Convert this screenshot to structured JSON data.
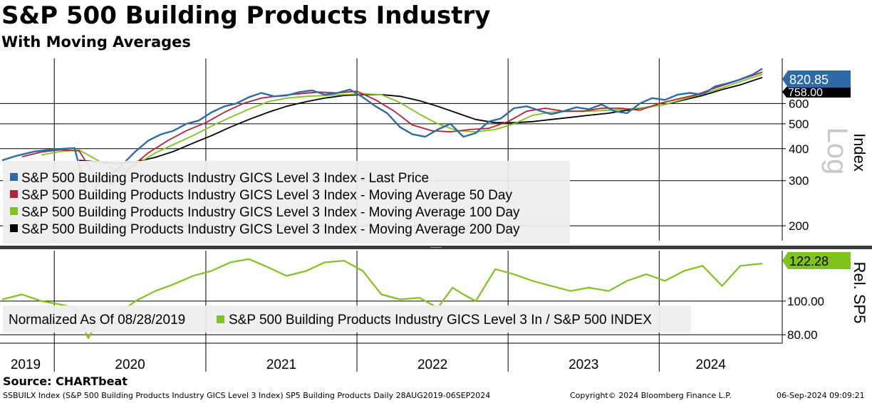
{
  "header": {
    "title": "S&P 500 Building Products Industry",
    "subtitle": "With Moving Averages"
  },
  "footer": {
    "source": "Source: CHARTbeat",
    "ticker_info": "SSBUILX Index (S&P 500 Building Products Industry GICS Level 3 Index) SP5 Building Products  Daily 28AUG2019-06SEP2024",
    "copyright": "Copyright© 2024 Bloomberg Finance L.P.",
    "timestamp": "06-Sep-2024 09:09:21"
  },
  "colors": {
    "last_price": "#2f6aa8",
    "ma50": "#b2233a",
    "ma100": "#7fc31c",
    "ma200": "#000000",
    "relative": "#7fc31c"
  },
  "chart_data": [
    {
      "type": "line",
      "panel": "upper",
      "y_scale": "log",
      "y_axis_title": "Index",
      "scale_watermark": "Log",
      "ylim": [
        175,
        900
      ],
      "y_ticks": [
        200,
        300,
        400,
        500,
        600
      ],
      "y_tick_labels": [
        "200",
        "300",
        "400",
        "500",
        "600"
      ],
      "x_ticks": [
        "2019",
        "2020",
        "2021",
        "2022",
        "2023",
        "2024"
      ],
      "last_value_labels": [
        {
          "series": "Last Price",
          "value": "820.85"
        },
        {
          "series": "Moving Average 200 Day",
          "value": "758.00"
        }
      ],
      "series": [
        {
          "name": "S&P 500 Building Products Industry GICS Level 3 Index - Last Price",
          "color": "#2f6aa8",
          "x": [
            "2019-08-28",
            "2019-10-01",
            "2019-11-15",
            "2020-01-02",
            "2020-02-19",
            "2020-03-23",
            "2020-04-20",
            "2020-05-15",
            "2020-06-08",
            "2020-07-15",
            "2020-08-15",
            "2020-09-15",
            "2020-10-15",
            "2020-11-15",
            "2020-12-15",
            "2021-01-15",
            "2021-02-15",
            "2021-03-15",
            "2021-04-15",
            "2021-05-15",
            "2021-06-15",
            "2021-07-15",
            "2021-08-15",
            "2021-09-15",
            "2021-10-15",
            "2021-11-15",
            "2021-12-15",
            "2022-01-15",
            "2022-02-15",
            "2022-03-15",
            "2022-04-15",
            "2022-05-15",
            "2022-06-15",
            "2022-07-15",
            "2022-08-15",
            "2022-09-15",
            "2022-10-15",
            "2022-11-15",
            "2022-12-15",
            "2023-01-15",
            "2023-02-15",
            "2023-03-15",
            "2023-04-15",
            "2023-05-15",
            "2023-06-15",
            "2023-07-15",
            "2023-08-15",
            "2023-09-15",
            "2023-10-15",
            "2023-11-15",
            "2023-12-15",
            "2024-01-15",
            "2024-02-15",
            "2024-03-15",
            "2024-04-15",
            "2024-05-15",
            "2024-06-15",
            "2024-07-15",
            "2024-08-15",
            "2024-09-06"
          ],
          "values": [
            360,
            375,
            390,
            398,
            402,
            250,
            300,
            315,
            340,
            390,
            430,
            455,
            470,
            500,
            515,
            555,
            585,
            600,
            635,
            660,
            640,
            645,
            665,
            675,
            650,
            660,
            680,
            635,
            585,
            550,
            485,
            455,
            445,
            475,
            500,
            445,
            460,
            510,
            525,
            575,
            585,
            565,
            545,
            560,
            580,
            570,
            595,
            560,
            550,
            600,
            630,
            620,
            650,
            660,
            650,
            700,
            720,
            745,
            780,
            820.85
          ]
        },
        {
          "name": "S&P 500 Building Products Industry GICS Level 3 Index - Moving Average 50 Day",
          "color": "#b2233a",
          "x": [
            "2019-10-15",
            "2019-12-01",
            "2020-01-15",
            "2020-03-01",
            "2020-04-10",
            "2020-05-20",
            "2020-07-01",
            "2020-08-15",
            "2020-10-01",
            "2020-11-15",
            "2021-01-01",
            "2021-02-15",
            "2021-04-01",
            "2021-05-15",
            "2021-07-01",
            "2021-08-15",
            "2021-10-01",
            "2021-11-15",
            "2022-01-01",
            "2022-02-15",
            "2022-04-01",
            "2022-05-15",
            "2022-07-01",
            "2022-08-15",
            "2022-10-01",
            "2022-11-15",
            "2023-01-01",
            "2023-02-15",
            "2023-04-01",
            "2023-05-15",
            "2023-07-01",
            "2023-08-15",
            "2023-10-01",
            "2023-11-15",
            "2024-01-01",
            "2024-02-15",
            "2024-04-01",
            "2024-05-15",
            "2024-07-01",
            "2024-09-06"
          ],
          "values": [
            372,
            388,
            396,
            392,
            310,
            290,
            335,
            385,
            430,
            470,
            505,
            555,
            600,
            630,
            645,
            655,
            665,
            660,
            670,
            620,
            560,
            495,
            470,
            465,
            475,
            480,
            510,
            560,
            575,
            560,
            560,
            575,
            575,
            565,
            600,
            625,
            650,
            690,
            730,
            795
          ]
        },
        {
          "name": "S&P 500 Building Products Industry GICS Level 3 Index - Moving Average 100 Day",
          "color": "#7fc31c",
          "x": [
            "2019-12-01",
            "2020-01-15",
            "2020-03-01",
            "2020-04-15",
            "2020-06-01",
            "2020-07-15",
            "2020-09-01",
            "2020-10-15",
            "2020-12-01",
            "2021-01-15",
            "2021-03-01",
            "2021-04-15",
            "2021-06-01",
            "2021-07-15",
            "2021-09-01",
            "2021-10-15",
            "2021-12-01",
            "2022-01-15",
            "2022-03-01",
            "2022-04-15",
            "2022-06-01",
            "2022-07-15",
            "2022-09-01",
            "2022-10-15",
            "2022-12-01",
            "2023-01-15",
            "2023-03-01",
            "2023-04-15",
            "2023-06-01",
            "2023-07-15",
            "2023-09-01",
            "2023-10-15",
            "2023-12-01",
            "2024-01-15",
            "2024-03-01",
            "2024-04-15",
            "2024-06-01",
            "2024-07-15",
            "2024-09-06"
          ],
          "values": [
            378,
            390,
            395,
            360,
            325,
            345,
            385,
            415,
            450,
            490,
            530,
            570,
            610,
            630,
            640,
            645,
            650,
            655,
            650,
            605,
            545,
            500,
            470,
            465,
            475,
            500,
            540,
            555,
            560,
            560,
            565,
            570,
            580,
            595,
            625,
            655,
            690,
            730,
            780
          ]
        },
        {
          "name": "S&P 500 Building Products Industry GICS Level 3 Index - Moving Average 200 Day",
          "color": "#000000",
          "x": [
            "2020-03-01",
            "2020-04-15",
            "2020-06-01",
            "2020-07-15",
            "2020-09-01",
            "2020-10-15",
            "2020-12-01",
            "2021-01-15",
            "2021-03-01",
            "2021-04-15",
            "2021-06-01",
            "2021-07-15",
            "2021-09-01",
            "2021-10-15",
            "2021-12-01",
            "2022-01-15",
            "2022-03-01",
            "2022-04-15",
            "2022-06-01",
            "2022-07-15",
            "2022-09-01",
            "2022-10-15",
            "2022-12-01",
            "2023-01-15",
            "2023-03-01",
            "2023-04-15",
            "2023-06-01",
            "2023-07-15",
            "2023-09-01",
            "2023-10-15",
            "2023-12-01",
            "2024-01-15",
            "2024-03-01",
            "2024-04-15",
            "2024-06-01",
            "2024-07-15",
            "2024-09-06"
          ],
          "values": [
            360,
            355,
            350,
            355,
            370,
            390,
            420,
            450,
            485,
            520,
            555,
            585,
            610,
            630,
            645,
            650,
            650,
            640,
            615,
            585,
            550,
            520,
            505,
            505,
            510,
            520,
            530,
            540,
            550,
            565,
            580,
            595,
            620,
            645,
            680,
            710,
            758
          ]
        }
      ]
    },
    {
      "type": "line",
      "panel": "lower",
      "y_axis_title": "Rel. SP5",
      "ylim": [
        75,
        130
      ],
      "y_ticks": [
        80,
        100
      ],
      "y_tick_labels": [
        "80.00",
        "100.00"
      ],
      "last_value_label": "122.28",
      "normalized_note": "Normalized As Of 08/28/2019",
      "series": [
        {
          "name": "S&P 500 Building Products Industry GICS Level 3 In / S&P 500 INDEX",
          "color": "#7fc31c",
          "x": [
            "2019-08-28",
            "2019-10-15",
            "2019-12-01",
            "2020-01-15",
            "2020-02-20",
            "2020-03-23",
            "2020-04-20",
            "2020-06-01",
            "2020-07-15",
            "2020-09-01",
            "2020-10-15",
            "2020-12-01",
            "2021-01-15",
            "2021-03-01",
            "2021-04-15",
            "2021-06-01",
            "2021-07-15",
            "2021-09-01",
            "2021-10-15",
            "2021-12-01",
            "2022-01-15",
            "2022-03-01",
            "2022-04-15",
            "2022-06-01",
            "2022-07-15",
            "2022-08-20",
            "2022-09-15",
            "2022-10-15",
            "2022-12-01",
            "2023-01-15",
            "2023-03-01",
            "2023-04-15",
            "2023-06-01",
            "2023-07-15",
            "2023-09-01",
            "2023-10-15",
            "2023-12-01",
            "2024-01-15",
            "2024-03-01",
            "2024-04-15",
            "2024-06-01",
            "2024-07-15",
            "2024-09-06"
          ],
          "values": [
            101,
            104,
            100,
            98,
            96,
            78,
            90,
            92,
            100,
            106,
            110,
            115,
            118,
            123,
            125,
            120,
            115,
            118,
            123,
            124,
            118,
            104,
            101,
            102,
            96,
            108,
            104,
            100,
            119,
            116,
            112,
            109,
            106,
            108,
            106,
            112,
            116,
            112,
            118,
            121,
            109,
            121,
            122.28
          ]
        }
      ]
    }
  ]
}
